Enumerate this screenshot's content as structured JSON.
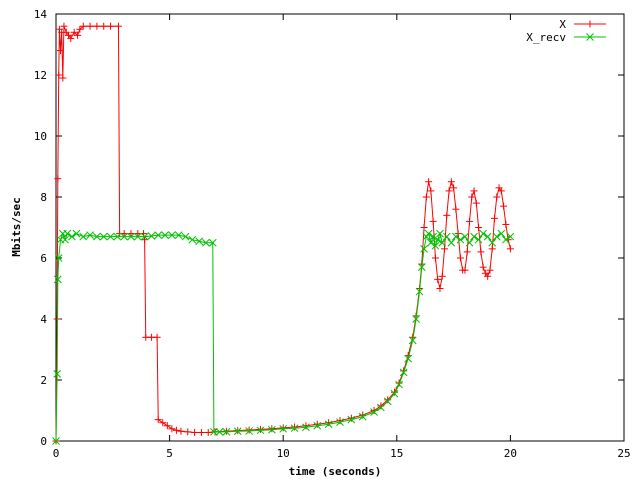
{
  "chart_data": {
    "type": "line",
    "title": "",
    "xlabel": "time (seconds)",
    "ylabel": "Mbits/sec",
    "xlim": [
      0,
      25
    ],
    "ylim": [
      0,
      14
    ],
    "xticks": [
      0,
      5,
      10,
      15,
      20,
      25
    ],
    "yticks": [
      0,
      2,
      4,
      6,
      8,
      10,
      12,
      14
    ],
    "grid": false,
    "legend_position": "top-right",
    "series": [
      {
        "name": "X",
        "color": "#ff0000",
        "marker": "plus",
        "values": [
          [
            0.0,
            0.0
          ],
          [
            0.05,
            4.0
          ],
          [
            0.08,
            8.6
          ],
          [
            0.12,
            12.0
          ],
          [
            0.15,
            13.5
          ],
          [
            0.2,
            12.8
          ],
          [
            0.25,
            13.4
          ],
          [
            0.3,
            11.9
          ],
          [
            0.35,
            13.6
          ],
          [
            0.45,
            13.4
          ],
          [
            0.55,
            13.3
          ],
          [
            0.65,
            13.2
          ],
          [
            0.8,
            13.4
          ],
          [
            0.95,
            13.3
          ],
          [
            1.05,
            13.5
          ],
          [
            1.2,
            13.6
          ],
          [
            1.5,
            13.6
          ],
          [
            1.8,
            13.6
          ],
          [
            2.1,
            13.6
          ],
          [
            2.4,
            13.6
          ],
          [
            2.75,
            13.6
          ],
          [
            2.8,
            6.8
          ],
          [
            3.0,
            6.8
          ],
          [
            3.3,
            6.8
          ],
          [
            3.6,
            6.8
          ],
          [
            3.85,
            6.8
          ],
          [
            3.9,
            6.6
          ],
          [
            3.95,
            3.4
          ],
          [
            4.2,
            3.4
          ],
          [
            4.45,
            3.4
          ],
          [
            4.5,
            0.7
          ],
          [
            4.7,
            0.6
          ],
          [
            4.9,
            0.5
          ],
          [
            5.1,
            0.4
          ],
          [
            5.3,
            0.35
          ],
          [
            5.5,
            0.32
          ],
          [
            5.8,
            0.3
          ],
          [
            6.1,
            0.28
          ],
          [
            6.4,
            0.28
          ],
          [
            6.7,
            0.28
          ],
          [
            7.0,
            0.3
          ],
          [
            7.5,
            0.32
          ],
          [
            8.0,
            0.34
          ],
          [
            8.5,
            0.36
          ],
          [
            9.0,
            0.38
          ],
          [
            9.5,
            0.4
          ],
          [
            10.0,
            0.43
          ],
          [
            10.5,
            0.46
          ],
          [
            11.0,
            0.5
          ],
          [
            11.5,
            0.55
          ],
          [
            12.0,
            0.6
          ],
          [
            12.5,
            0.67
          ],
          [
            13.0,
            0.75
          ],
          [
            13.5,
            0.85
          ],
          [
            14.0,
            1.0
          ],
          [
            14.3,
            1.15
          ],
          [
            14.6,
            1.35
          ],
          [
            14.9,
            1.6
          ],
          [
            15.1,
            1.9
          ],
          [
            15.3,
            2.3
          ],
          [
            15.5,
            2.8
          ],
          [
            15.7,
            3.4
          ],
          [
            15.85,
            4.1
          ],
          [
            16.0,
            5.0
          ],
          [
            16.1,
            5.8
          ],
          [
            16.2,
            7.0
          ],
          [
            16.3,
            8.0
          ],
          [
            16.4,
            8.5
          ],
          [
            16.5,
            8.2
          ],
          [
            16.6,
            7.2
          ],
          [
            16.7,
            6.0
          ],
          [
            16.8,
            5.3
          ],
          [
            16.9,
            5.0
          ],
          [
            17.0,
            5.4
          ],
          [
            17.1,
            6.3
          ],
          [
            17.2,
            7.4
          ],
          [
            17.3,
            8.2
          ],
          [
            17.4,
            8.5
          ],
          [
            17.5,
            8.3
          ],
          [
            17.6,
            7.6
          ],
          [
            17.7,
            6.8
          ],
          [
            17.8,
            6.0
          ],
          [
            17.9,
            5.6
          ],
          [
            18.0,
            5.6
          ],
          [
            18.1,
            6.2
          ],
          [
            18.2,
            7.2
          ],
          [
            18.3,
            8.0
          ],
          [
            18.4,
            8.2
          ],
          [
            18.5,
            7.8
          ],
          [
            18.6,
            7.0
          ],
          [
            18.7,
            6.2
          ],
          [
            18.8,
            5.7
          ],
          [
            18.9,
            5.5
          ],
          [
            19.0,
            5.4
          ],
          [
            19.1,
            5.6
          ],
          [
            19.2,
            6.3
          ],
          [
            19.3,
            7.3
          ],
          [
            19.4,
            8.0
          ],
          [
            19.5,
            8.3
          ],
          [
            19.6,
            8.2
          ],
          [
            19.7,
            7.7
          ],
          [
            19.8,
            7.1
          ],
          [
            19.9,
            6.6
          ],
          [
            20.0,
            6.3
          ]
        ]
      },
      {
        "name": "X_recv",
        "color": "#00c000",
        "marker": "cross",
        "values": [
          [
            0.0,
            0.0
          ],
          [
            0.05,
            2.2
          ],
          [
            0.08,
            5.3
          ],
          [
            0.12,
            6.0
          ],
          [
            0.2,
            6.6
          ],
          [
            0.3,
            6.8
          ],
          [
            0.4,
            6.6
          ],
          [
            0.5,
            6.8
          ],
          [
            0.7,
            6.7
          ],
          [
            0.9,
            6.8
          ],
          [
            1.2,
            6.7
          ],
          [
            1.5,
            6.75
          ],
          [
            1.8,
            6.7
          ],
          [
            2.1,
            6.7
          ],
          [
            2.4,
            6.7
          ],
          [
            2.7,
            6.7
          ],
          [
            3.0,
            6.7
          ],
          [
            3.3,
            6.7
          ],
          [
            3.6,
            6.7
          ],
          [
            3.9,
            6.7
          ],
          [
            4.2,
            6.72
          ],
          [
            4.5,
            6.75
          ],
          [
            4.8,
            6.75
          ],
          [
            5.1,
            6.75
          ],
          [
            5.4,
            6.75
          ],
          [
            5.7,
            6.7
          ],
          [
            6.0,
            6.6
          ],
          [
            6.3,
            6.55
          ],
          [
            6.6,
            6.5
          ],
          [
            6.9,
            6.5
          ],
          [
            6.95,
            0.3
          ],
          [
            7.2,
            0.3
          ],
          [
            7.5,
            0.3
          ],
          [
            8.0,
            0.32
          ],
          [
            8.5,
            0.33
          ],
          [
            9.0,
            0.35
          ],
          [
            9.5,
            0.37
          ],
          [
            10.0,
            0.4
          ],
          [
            10.5,
            0.42
          ],
          [
            11.0,
            0.45
          ],
          [
            11.5,
            0.5
          ],
          [
            12.0,
            0.55
          ],
          [
            12.5,
            0.62
          ],
          [
            13.0,
            0.7
          ],
          [
            13.5,
            0.8
          ],
          [
            14.0,
            0.95
          ],
          [
            14.3,
            1.1
          ],
          [
            14.6,
            1.3
          ],
          [
            14.9,
            1.55
          ],
          [
            15.1,
            1.85
          ],
          [
            15.3,
            2.25
          ],
          [
            15.5,
            2.7
          ],
          [
            15.7,
            3.3
          ],
          [
            15.85,
            4.0
          ],
          [
            16.0,
            4.9
          ],
          [
            16.1,
            5.7
          ],
          [
            16.2,
            6.3
          ],
          [
            16.3,
            6.7
          ],
          [
            16.4,
            6.8
          ],
          [
            16.5,
            6.5
          ],
          [
            16.6,
            6.7
          ],
          [
            16.7,
            6.4
          ],
          [
            16.8,
            6.6
          ],
          [
            16.9,
            6.8
          ],
          [
            17.0,
            6.5
          ],
          [
            17.2,
            6.7
          ],
          [
            17.4,
            6.5
          ],
          [
            17.6,
            6.7
          ],
          [
            17.8,
            6.6
          ],
          [
            18.0,
            6.7
          ],
          [
            18.2,
            6.5
          ],
          [
            18.4,
            6.7
          ],
          [
            18.6,
            6.6
          ],
          [
            18.8,
            6.8
          ],
          [
            19.0,
            6.7
          ],
          [
            19.2,
            6.5
          ],
          [
            19.4,
            6.7
          ],
          [
            19.6,
            6.8
          ],
          [
            19.8,
            6.6
          ],
          [
            20.0,
            6.7
          ]
        ]
      }
    ]
  }
}
